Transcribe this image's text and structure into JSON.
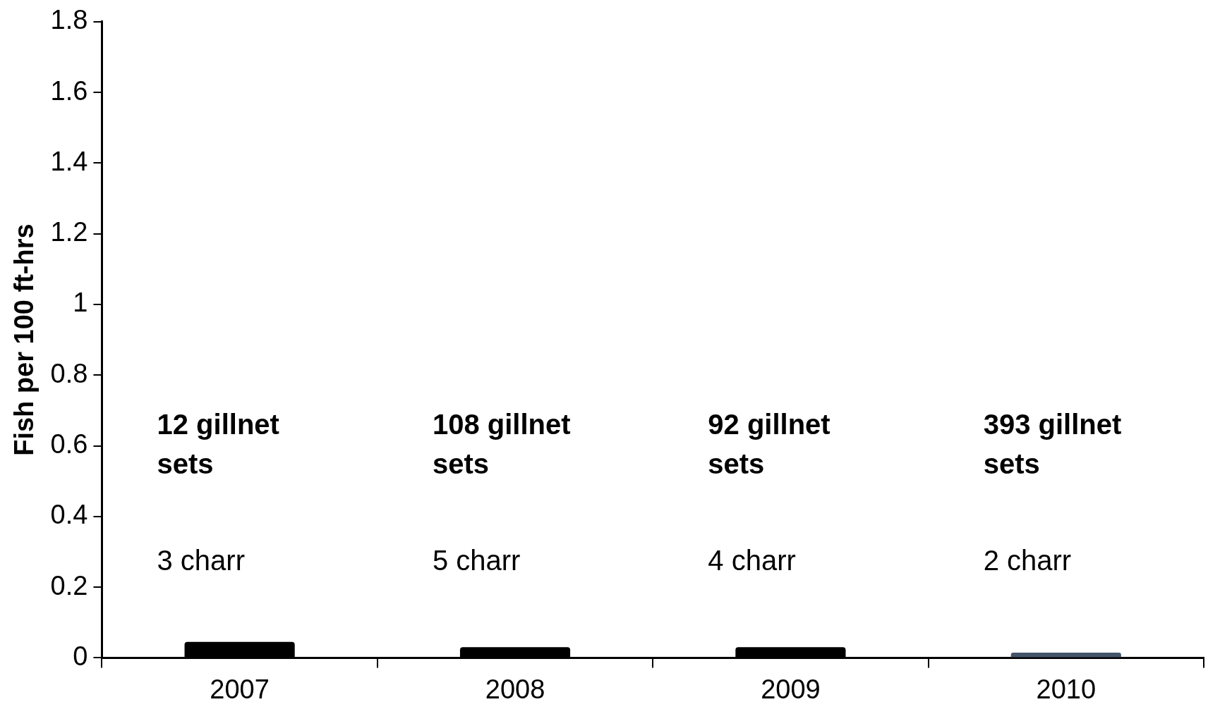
{
  "chart_data": {
    "type": "bar",
    "ylabel": "Fish per 100 ft-hrs",
    "categories": [
      "2007",
      "2008",
      "2009",
      "2010"
    ],
    "values": [
      0.045,
      0.03,
      0.03,
      0.015
    ],
    "colors": [
      "#000000",
      "#000000",
      "#000000",
      "#44546a"
    ],
    "ylim": [
      0,
      1.8
    ],
    "yticks": [
      0,
      0.2,
      0.4,
      0.6,
      0.8,
      1,
      1.2,
      1.4,
      1.6,
      1.8
    ],
    "grid": false,
    "legend": false,
    "annotations": [
      "12 gillnet sets",
      "3 charr",
      "108 gillnet sets",
      "5 charr",
      "92 gillnet sets",
      "4 charr",
      "393 gillnet sets",
      "2 charr"
    ]
  }
}
